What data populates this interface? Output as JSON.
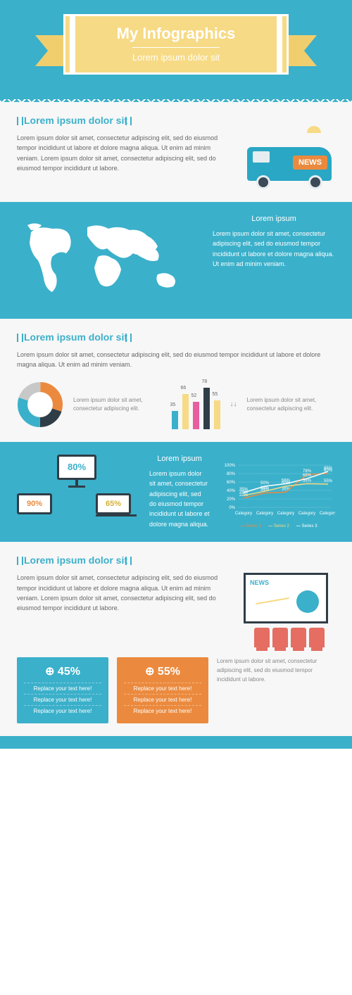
{
  "colors": {
    "teal": "#3bb0ca",
    "orange": "#eb8a3e",
    "yellow": "#f6da85",
    "dark": "#2f3d47",
    "coral": "#e56d62",
    "pink": "#e85d9e",
    "grey": "#666"
  },
  "header": {
    "title": "My Infographics",
    "subtitle": "Lorem ipsum dolor sit"
  },
  "s1": {
    "heading": "Lorem ipsum dolor sit",
    "text": "Lorem ipsum dolor sit amet, consectetur adipiscing elit, sed do eiusmod tempor incididunt ut labore et dolore magna aliqua. Ut enim ad minim veniam. Lorem ipsum dolor sit amet, consectetur adipiscing elit, sed do eiusmod tempor incididunt ut labore.",
    "van_label": "NEWS"
  },
  "s2": {
    "heading": "Lorem ipsum",
    "text": "Lorem ipsum dolor sit amet, consectetur adipiscing elit, sed do eiusmod tempor incididunt ut labore et dolore magna aliqua. Ut enim ad minim veniam."
  },
  "s3": {
    "heading": "Lorem ipsum dolor sit",
    "text": "Lorem ipsum dolor sit amet, consectetur adipiscing elit, sed do eiusmod tempor incididunt ut labore et dolore magna aliqua. Ut enim ad minim veniam.",
    "donut": {
      "slices": [
        {
          "v": 30,
          "c": "#eb8a3e"
        },
        {
          "v": 20,
          "c": "#2f3d47"
        },
        {
          "v": 30,
          "c": "#3bb0ca"
        },
        {
          "v": 20,
          "c": "#c8c8c8"
        }
      ]
    },
    "donut_text": "Lorem ipsum dolor sit amet, consectetur adipiscing elit.",
    "bars": {
      "values": [
        35,
        66,
        52,
        78,
        55
      ],
      "colors": [
        "#3bb0ca",
        "#f6da85",
        "#e85d9e",
        "#2f3d47",
        "#f6da85"
      ],
      "max": 80
    },
    "bars_text": "Lorem ipsum dolor sit amet, consectetur adipiscing elit."
  },
  "s4": {
    "heading": "Lorem ipsum",
    "text": "Lorem ipsum dolor sit amet, consectetur adipiscing elit, sed do eiusmod tempor incididunt ut labore et dolore magna aliqua.",
    "devices": {
      "monitor": "80%",
      "phone": "90%",
      "laptop": "65%",
      "monitor_color": "#3bb0ca",
      "phone_color": "#eb8a3e",
      "laptop_color": "#f6da85"
    },
    "linechart": {
      "ymax": 100,
      "ystep": 20,
      "categories": [
        "Category",
        "Category",
        "Category",
        "Category",
        "Category"
      ],
      "series": [
        {
          "name": "Series 1",
          "color": "#eb8a3e",
          "pts": [
            22,
            34,
            36,
            78,
            80
          ]
        },
        {
          "name": "Series 2",
          "color": "#f6da85",
          "pts": [
            28,
            38,
            50,
            56,
            55
          ]
        },
        {
          "name": "Series 3",
          "color": "#ffffff",
          "pts": [
            35,
            50,
            56,
            68,
            85
          ]
        }
      ]
    }
  },
  "s5": {
    "heading": "Lorem ipsum dolor sit",
    "text": "Lorem ipsum dolor sit amet, consectetur adipiscing elit, sed do eiusmod tempor incididunt ut labore et dolore magna aliqua. Ut enim ad minim veniam. Lorem ipsum dolor sit amet, consectetur adipiscing elit, sed do eiusmod tempor incididunt ut labore.",
    "tv_label": "NEWS",
    "cards": [
      {
        "color": "teal",
        "pct": "45%",
        "lines": [
          "Replace your text here!",
          "Replace your text here!",
          "Replace your text here!"
        ]
      },
      {
        "color": "orange",
        "pct": "55%",
        "lines": [
          "Replace your text here!",
          "Replace your text here!",
          "Replace your text here!"
        ]
      }
    ],
    "cards_text": "Lorem ipsum dolor sit amet, consectetur adipiscing elit, sed do eiusmod tempor incididunt ut labore."
  }
}
